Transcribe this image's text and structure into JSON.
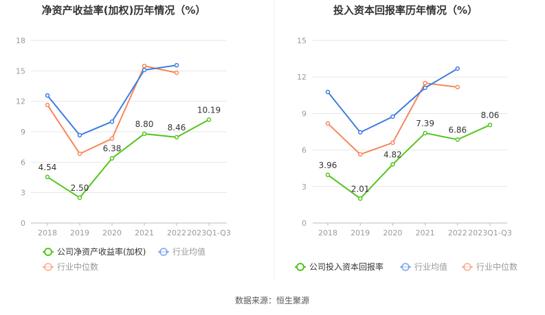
{
  "source": "数据来源：恒生聚源",
  "colors": {
    "company": "#52c41a",
    "average": "#3d7be0",
    "median": "#f4875a",
    "grid": "#e6e6e6",
    "axis": "#999999"
  },
  "chart_data": [
    {
      "type": "line",
      "title": "净资产收益率(加权)历年情况（%）",
      "categories": [
        "2018",
        "2019",
        "2020",
        "2021",
        "2022",
        "2023Q1-Q3"
      ],
      "ylim": [
        0,
        18
      ],
      "yticks": [
        0,
        3,
        6,
        9,
        12,
        15,
        18
      ],
      "grid": true,
      "legend_placement": "bottom",
      "series": [
        {
          "name": "公司净资产收益率(加权)",
          "key": "company",
          "values": [
            4.54,
            2.5,
            6.38,
            8.8,
            8.46,
            10.19
          ],
          "labels": [
            "4.54",
            "2.50",
            "6.38",
            "8.80",
            "8.46",
            "10.19"
          ]
        },
        {
          "name": "行业均值",
          "key": "average",
          "values": [
            12.58,
            8.66,
            10.0,
            15.09,
            15.56,
            null
          ]
        },
        {
          "name": "行业中位数",
          "key": "median",
          "values": [
            11.64,
            6.83,
            8.32,
            15.49,
            14.82,
            null
          ]
        }
      ]
    },
    {
      "type": "line",
      "title": "投入资本回报率历年情况（%）",
      "categories": [
        "2018",
        "2019",
        "2020",
        "2021",
        "2022",
        "2023Q1-Q3"
      ],
      "ylim": [
        0,
        15
      ],
      "yticks": [
        0,
        3,
        6,
        9,
        12,
        15
      ],
      "grid": true,
      "legend_placement": "bottom",
      "series": [
        {
          "name": "公司投入资本回报率",
          "key": "company",
          "values": [
            3.96,
            2.01,
            4.82,
            7.39,
            6.86,
            8.06
          ],
          "labels": [
            "3.96",
            "2.01",
            "4.82",
            "7.39",
            "6.86",
            "8.06"
          ]
        },
        {
          "name": "行业均值",
          "key": "average",
          "values": [
            10.77,
            7.45,
            8.74,
            11.11,
            12.69,
            null
          ]
        },
        {
          "name": "行业中位数",
          "key": "median",
          "values": [
            8.18,
            5.64,
            6.6,
            11.5,
            11.17,
            null
          ]
        }
      ]
    }
  ]
}
